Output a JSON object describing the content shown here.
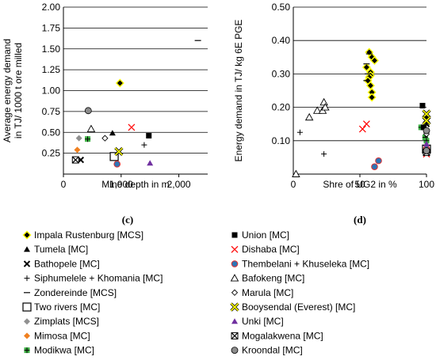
{
  "panels": [
    {
      "caption": "(c)",
      "chart_data": {
        "type": "scatter",
        "title": "",
        "xlabel": "Mine depth in m",
        "ylabel": "Average energy demand in TJ/ 1000 t ore milled",
        "xlim": [
          0,
          2500
        ],
        "ylim": [
          0,
          2.0
        ],
        "x_ticks": [
          0,
          1000,
          2000
        ],
        "x_tick_labels": [
          "0",
          "1,000",
          "2,000"
        ],
        "y_ticks": [
          0,
          0.25,
          0.5,
          0.75,
          1.0,
          1.25,
          1.5,
          1.75,
          2.0
        ],
        "y_tick_labels": [
          "",
          "0.25",
          "0.50",
          "0.75",
          "1.00",
          "1.25",
          "1.50",
          "1.75",
          "2.00"
        ],
        "grid": "horizontal",
        "series": [
          {
            "name": "Impala Rustenburg [MCS]",
            "marker": "impala",
            "points": [
              [
                980,
                1.09
              ]
            ]
          },
          {
            "name": "Tumela [MC]",
            "marker": "tri-fill",
            "points": [
              [
                850,
                0.49
              ]
            ]
          },
          {
            "name": "Bathopele [MC]",
            "marker": "xbold",
            "points": [
              [
                300,
                0.17
              ]
            ]
          },
          {
            "name": "Siphumelele + Khomania [MC]",
            "marker": "plus",
            "points": [
              [
                1400,
                0.35
              ]
            ]
          },
          {
            "name": "Zondereinde [MCS]",
            "marker": "dash",
            "points": [
              [
                2330,
                1.6
              ]
            ]
          },
          {
            "name": "Two rivers [MC]",
            "marker": "square-open",
            "points": [
              [
                880,
                0.21
              ]
            ]
          },
          {
            "name": "Zimplats [MCS]",
            "marker": "diamond-gray",
            "points": [
              [
                270,
                0.43
              ]
            ]
          },
          {
            "name": "Mimosa [MC]",
            "marker": "diamond-orange",
            "points": [
              [
                240,
                0.29
              ]
            ]
          },
          {
            "name": "Modikwa [MC]",
            "marker": "modikwa",
            "points": [
              [
                420,
                0.42
              ]
            ]
          },
          {
            "name": "Union [MC]",
            "marker": "square-fill",
            "points": [
              [
                1480,
                0.46
              ]
            ]
          },
          {
            "name": "Dishaba [MC]",
            "marker": "xred",
            "points": [
              [
                1180,
                0.56
              ]
            ]
          },
          {
            "name": "Thembelani + Khuseleka [MC]",
            "marker": "circle-blue",
            "points": [
              [
                930,
                0.12
              ]
            ]
          },
          {
            "name": "Bafokeng [MC]",
            "marker": "tri-open",
            "points": [
              [
                480,
                0.54
              ]
            ]
          },
          {
            "name": "Marula [MC]",
            "marker": "diamond-open",
            "points": [
              [
                720,
                0.43
              ]
            ]
          },
          {
            "name": "Booysendal (Everest) [MC]",
            "marker": "booysendal",
            "points": [
              [
                960,
                0.27
              ]
            ]
          },
          {
            "name": "Unki [MC]",
            "marker": "tri-purple",
            "points": [
              [
                1500,
                0.13
              ]
            ]
          },
          {
            "name": "Mogalakwena [MC]",
            "marker": "mogalakwena",
            "points": [
              [
                210,
                0.17
              ]
            ]
          },
          {
            "name": "Kroondal [MC]",
            "marker": "circle-gray",
            "points": [
              [
                430,
                0.76
              ]
            ]
          }
        ]
      }
    },
    {
      "caption": "(d)",
      "chart_data": {
        "type": "scatter",
        "title": "",
        "xlabel": "Shre of UG2 in %",
        "ylabel": "Energy demand in TJ/ kg 6E PGE",
        "xlim": [
          0,
          100
        ],
        "ylim": [
          0,
          0.5
        ],
        "x_ticks": [
          0,
          50,
          100
        ],
        "x_tick_labels": [
          "0",
          "50",
          "100"
        ],
        "y_ticks": [
          0,
          0.1,
          0.2,
          0.3,
          0.4,
          0.5
        ],
        "y_tick_labels": [
          "",
          "0.10",
          "0.20",
          "0.30",
          "0.40",
          "0.50"
        ],
        "grid": "horizontal",
        "series": [
          {
            "name": "Impala Rustenburg [MCS]",
            "marker": "impala",
            "points": [
              [
                57,
                0.365
              ],
              [
                59,
                0.35
              ],
              [
                61,
                0.34
              ],
              [
                55,
                0.32
              ],
              [
                58,
                0.305
              ],
              [
                58,
                0.295
              ],
              [
                57,
                0.29
              ],
              [
                56,
                0.28
              ],
              [
                58,
                0.265
              ],
              [
                59,
                0.245
              ],
              [
                59,
                0.23
              ]
            ]
          },
          {
            "name": "Tumela [MC]",
            "marker": "tri-fill",
            "points": [
              [
                100,
                0.17
              ]
            ]
          },
          {
            "name": "Bathopele [MC]",
            "marker": "xbold",
            "points": [
              [
                100,
                0.15
              ]
            ]
          },
          {
            "name": "Siphumelele + Khomania [MC]",
            "marker": "plus",
            "points": [
              [
                5,
                0.125
              ],
              [
                23,
                0.06
              ]
            ]
          },
          {
            "name": "Zondereinde [MCS]",
            "marker": "dash",
            "points": [
              [
                57,
                0.36
              ],
              [
                55,
                0.33
              ],
              [
                56,
                0.3
              ],
              [
                55,
                0.28
              ]
            ]
          },
          {
            "name": "Two rivers [MC]",
            "marker": "square-open",
            "points": [
              [
                100,
                0.075
              ]
            ]
          },
          {
            "name": "Zimplats [MCS]",
            "marker": "diamond-gray",
            "points": [
              [
                100,
                0.07
              ]
            ]
          },
          {
            "name": "Mimosa [MC]",
            "marker": "diamond-orange",
            "points": [
              [
                100,
                0.08
              ]
            ]
          },
          {
            "name": "Modikwa [MC]",
            "marker": "modikwa",
            "points": [
              [
                96,
                0.14
              ],
              [
                99,
                0.11
              ],
              [
                100,
                0.1
              ]
            ]
          },
          {
            "name": "Union [MC]",
            "marker": "square-fill",
            "points": [
              [
                97,
                0.205
              ],
              [
                98,
                0.14
              ]
            ]
          },
          {
            "name": "Dishaba [MC]",
            "marker": "xred",
            "points": [
              [
                52,
                0.135
              ],
              [
                55,
                0.15
              ],
              [
                100,
                0.06
              ]
            ]
          },
          {
            "name": "Thembelani + Khuseleka [MC]",
            "marker": "circle-blue",
            "points": [
              [
                61,
                0.022
              ],
              [
                64,
                0.04
              ],
              [
                100,
                0.075
              ]
            ]
          },
          {
            "name": "Bafokeng [MC]",
            "marker": "tri-open",
            "points": [
              [
                2,
                0.0
              ],
              [
                12,
                0.17
              ],
              [
                18,
                0.19
              ],
              [
                22,
                0.19
              ],
              [
                23,
                0.215
              ],
              [
                24,
                0.2
              ]
            ]
          },
          {
            "name": "Marula [MC]",
            "marker": "diamond-open",
            "points": [
              [
                100,
                0.12
              ]
            ]
          },
          {
            "name": "Booysendal (Everest) [MC]",
            "marker": "booysendal",
            "points": [
              [
                100,
                0.18
              ],
              [
                100,
                0.16
              ]
            ]
          },
          {
            "name": "Unki [MC]",
            "marker": "tri-purple",
            "points": [
              [
                100,
                0.09
              ]
            ]
          },
          {
            "name": "Mogalakwena [MC]",
            "marker": "mogalakwena",
            "points": [
              [
                100,
                0.065
              ]
            ]
          },
          {
            "name": "Kroondal [MC]",
            "marker": "circle-gray",
            "points": [
              [
                100,
                0.13
              ],
              [
                100,
                0.07
              ]
            ]
          }
        ]
      }
    }
  ],
  "legend": {
    "placement": "bottom, two columns",
    "items": [
      {
        "label": "Impala Rustenburg [MCS]",
        "marker": "impala"
      },
      {
        "label": "Union [MC]",
        "marker": "square-fill"
      },
      {
        "label": "Tumela [MC]",
        "marker": "tri-fill"
      },
      {
        "label": "Dishaba [MC]",
        "marker": "xred"
      },
      {
        "label": "Bathopele [MC]",
        "marker": "xbold"
      },
      {
        "label": "Thembelani + Khuseleka [MC]",
        "marker": "circle-blue"
      },
      {
        "label": "Siphumelele + Khomania [MC]",
        "marker": "plus"
      },
      {
        "label": "Bafokeng [MC]",
        "marker": "tri-open"
      },
      {
        "label": "Zondereinde [MCS]",
        "marker": "dash"
      },
      {
        "label": "Marula [MC]",
        "marker": "diamond-open"
      },
      {
        "label": "Two rivers [MC]",
        "marker": "square-open"
      },
      {
        "label": "Booysendal (Everest) [MC]",
        "marker": "booysendal"
      },
      {
        "label": "Zimplats [MCS]",
        "marker": "diamond-gray"
      },
      {
        "label": "Unki [MC]",
        "marker": "tri-purple"
      },
      {
        "label": "Mimosa [MC]",
        "marker": "diamond-orange"
      },
      {
        "label": "Mogalakwena [MC]",
        "marker": "mogalakwena"
      },
      {
        "label": "Modikwa [MC]",
        "marker": "modikwa"
      },
      {
        "label": "Kroondal [MC]",
        "marker": "circle-gray"
      }
    ]
  },
  "colors": {
    "impala_fill": "#ffff00",
    "dishaba_red": "#ff0000",
    "thembelani_fill": "#2e75b6",
    "thembelani_edge": "#e03030",
    "zimplats_gray": "#909090",
    "mimosa_orange": "#f08020",
    "modikwa_green": "#3cb043",
    "booysendal_yellow": "#ffff00",
    "unki_purple": "#7030a0",
    "kroondal_gray": "#8c8c8c",
    "grid": "#000000"
  }
}
